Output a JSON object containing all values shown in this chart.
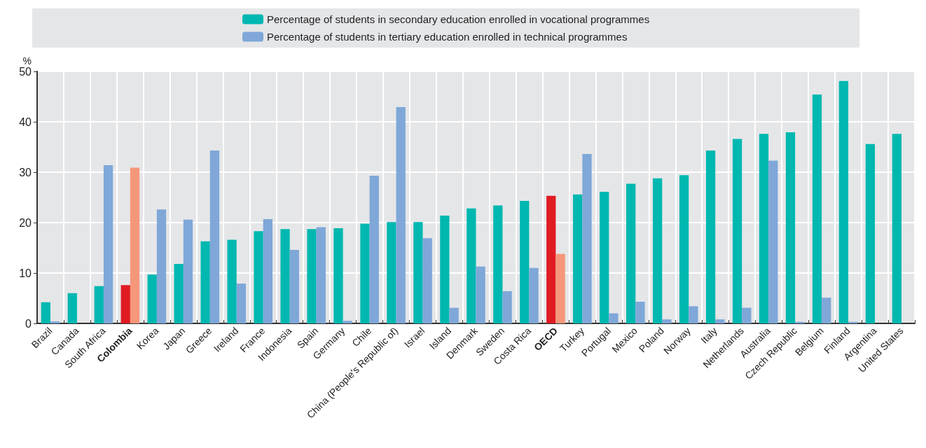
{
  "chart_data": {
    "type": "bar",
    "ylabel": "%",
    "categories": [
      "Brazil",
      "Canada",
      "South Africa",
      "Colombia",
      "Korea",
      "Japan",
      "Greece",
      "Ireland",
      "France",
      "Indonesia",
      "Spain",
      "Germany",
      "Chile",
      "China (People's Republic of)",
      "Israel",
      "Island",
      "Denmark",
      "Sweden",
      "Costa Rica",
      "OECD",
      "Turkey",
      "Portugal",
      "Mexico",
      "Poland",
      "Norway",
      "Italy",
      "Netherlands",
      "Australia",
      "Czech Republic",
      "Belgium",
      "Finland",
      "Argentina",
      "United States"
    ],
    "series": [
      {
        "name": "Percentage of students in secondary education enrolled in vocational programmes",
        "color": "#00b8b0",
        "colors": [
          "#00b8b0",
          "#00b8b0",
          "#00b8b0",
          "#e01b22",
          "#00b8b0",
          "#00b8b0",
          "#00b8b0",
          "#00b8b0",
          "#00b8b0",
          "#00b8b0",
          "#00b8b0",
          "#00b8b0",
          "#00b8b0",
          "#00b8b0",
          "#00b8b0",
          "#00b8b0",
          "#00b8b0",
          "#00b8b0",
          "#00b8b0",
          "#e01b22",
          "#00b8b0",
          "#00b8b0",
          "#00b8b0",
          "#00b8b0",
          "#00b8b0",
          "#00b8b0",
          "#00b8b0",
          "#00b8b0",
          "#00b8b0",
          "#00b8b0",
          "#00b8b0",
          "#00b8b0",
          "#00b8b0"
        ],
        "values": [
          4.2,
          6.0,
          7.4,
          7.6,
          9.7,
          11.8,
          16.3,
          16.6,
          18.3,
          18.7,
          18.7,
          18.9,
          19.8,
          20.1,
          20.1,
          21.4,
          22.8,
          23.4,
          24.3,
          25.3,
          25.6,
          26.1,
          27.7,
          28.8,
          29.4,
          34.3,
          36.6,
          37.6,
          37.9,
          45.4,
          48.1,
          35.6,
          37.6
        ]
      },
      {
        "name": "Percentage of students in tertiary education enrolled in technical programmes",
        "color": "#7fa7d8",
        "colors": [
          "#7fa7d8",
          "#7fa7d8",
          "#7fa7d8",
          "#f5977a",
          "#7fa7d8",
          "#7fa7d8",
          "#7fa7d8",
          "#7fa7d8",
          "#7fa7d8",
          "#7fa7d8",
          "#7fa7d8",
          "#7fa7d8",
          "#7fa7d8",
          "#7fa7d8",
          "#7fa7d8",
          "#7fa7d8",
          "#7fa7d8",
          "#7fa7d8",
          "#7fa7d8",
          "#f5977a",
          "#7fa7d8",
          "#7fa7d8",
          "#7fa7d8",
          "#7fa7d8",
          "#7fa7d8",
          "#7fa7d8",
          "#7fa7d8",
          "#7fa7d8",
          "#7fa7d8",
          "#7fa7d8",
          "#7fa7d8",
          "#7fa7d8",
          "#7fa7d8"
        ],
        "values": [
          0.4,
          null,
          31.4,
          30.9,
          22.6,
          20.6,
          34.3,
          7.9,
          20.7,
          14.6,
          19.1,
          0.5,
          29.3,
          42.9,
          16.9,
          3.1,
          11.3,
          6.4,
          11.0,
          13.8,
          33.6,
          2.0,
          4.3,
          0.8,
          3.4,
          0.8,
          3.1,
          32.3,
          0.3,
          5.1,
          0.3,
          null,
          null
        ]
      }
    ],
    "ylim": [
      0,
      50
    ],
    "yticks": [
      0,
      10,
      20,
      30,
      40,
      50
    ],
    "grid": true,
    "legend": "top"
  }
}
